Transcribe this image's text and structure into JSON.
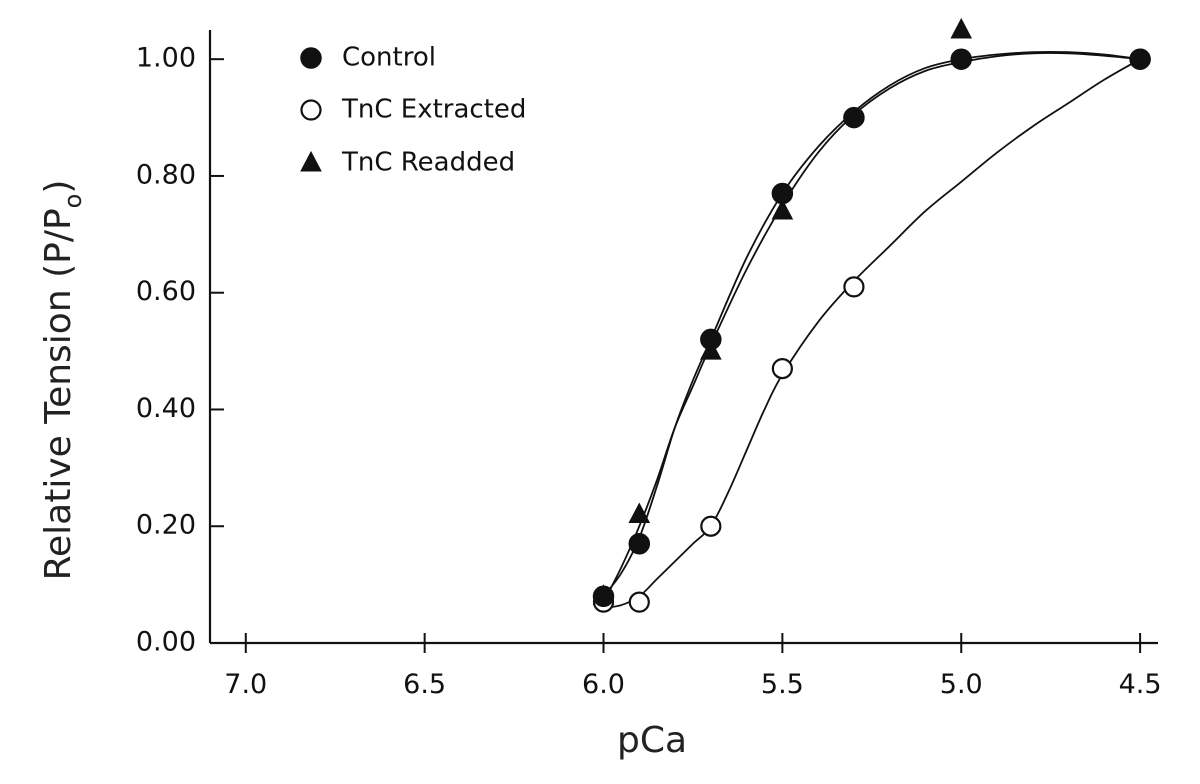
{
  "chart_data": {
    "type": "scatter",
    "title": "",
    "xlabel": "pCa",
    "ylabel": "Relative Tension (P/Po)",
    "ylabel_parts": {
      "prefix": "Relative Tension (P/P",
      "subscript": "o",
      "suffix": ")"
    },
    "xlim": [
      7.1,
      4.45
    ],
    "ylim": [
      0.0,
      1.05
    ],
    "x_reversed": true,
    "xticks": [
      7.0,
      6.5,
      6.0,
      5.5,
      5.0,
      4.5
    ],
    "xtick_labels": [
      "7.0",
      "6.5",
      "6.0",
      "5.5",
      "5.0",
      "4.5"
    ],
    "yticks": [
      0.0,
      0.2,
      0.4,
      0.6,
      0.8,
      1.0
    ],
    "ytick_labels": [
      "0.00",
      "0.20",
      "0.40",
      "0.60",
      "0.80",
      "1.00"
    ],
    "grid": false,
    "legend_position": "top-left",
    "series": [
      {
        "name": "Control",
        "marker": "filled-circle",
        "color": "#111111",
        "x": [
          6.0,
          5.9,
          5.7,
          5.5,
          5.3,
          5.0,
          4.5
        ],
        "y": [
          0.08,
          0.17,
          0.52,
          0.77,
          0.9,
          1.0,
          1.0
        ]
      },
      {
        "name": "TnC Extracted",
        "marker": "open-circle",
        "color": "#111111",
        "x": [
          6.0,
          5.9,
          5.7,
          5.5,
          5.3,
          4.5
        ],
        "y": [
          0.07,
          0.07,
          0.2,
          0.47,
          0.61,
          1.0
        ]
      },
      {
        "name": "TnC Readded",
        "marker": "filled-triangle",
        "color": "#111111",
        "x": [
          6.0,
          5.9,
          5.7,
          5.5,
          5.0
        ],
        "y": [
          0.08,
          0.22,
          0.5,
          0.74,
          1.05
        ]
      }
    ],
    "fit_curves": [
      {
        "series": "Control",
        "x": [
          6.0,
          5.95,
          5.9,
          5.85,
          5.8,
          5.75,
          5.7,
          5.6,
          5.5,
          5.4,
          5.3,
          5.2,
          5.1,
          5.0,
          4.9,
          4.8,
          4.7,
          4.6,
          4.5
        ],
        "y": [
          0.08,
          0.12,
          0.18,
          0.27,
          0.37,
          0.45,
          0.52,
          0.66,
          0.77,
          0.85,
          0.91,
          0.955,
          0.985,
          1.0,
          1.008,
          1.012,
          1.012,
          1.008,
          1.0
        ]
      },
      {
        "series": "TnC Readded",
        "x": [
          6.0,
          5.95,
          5.9,
          5.85,
          5.8,
          5.75,
          5.7,
          5.6,
          5.5,
          5.4,
          5.3,
          5.2,
          5.1,
          5.0,
          4.9,
          4.8,
          4.7,
          4.6,
          4.5
        ],
        "y": [
          0.07,
          0.13,
          0.2,
          0.28,
          0.37,
          0.44,
          0.51,
          0.64,
          0.75,
          0.84,
          0.905,
          0.95,
          0.98,
          0.995,
          1.005,
          1.01,
          1.01,
          1.006,
          1.0
        ]
      },
      {
        "series": "TnC Extracted",
        "x": [
          6.0,
          5.95,
          5.9,
          5.85,
          5.8,
          5.75,
          5.7,
          5.65,
          5.6,
          5.55,
          5.5,
          5.4,
          5.3,
          5.2,
          5.1,
          5.0,
          4.9,
          4.8,
          4.7,
          4.6,
          4.5
        ],
        "y": [
          0.06,
          0.065,
          0.08,
          0.11,
          0.14,
          0.17,
          0.2,
          0.26,
          0.33,
          0.4,
          0.46,
          0.55,
          0.62,
          0.68,
          0.74,
          0.79,
          0.84,
          0.885,
          0.925,
          0.965,
          1.0
        ]
      }
    ]
  }
}
